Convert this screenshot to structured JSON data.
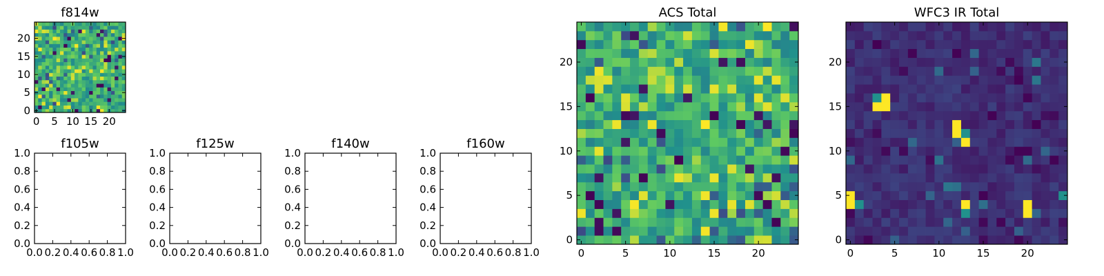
{
  "figure": {
    "colormap": "viridis",
    "colormap_stops": [
      "#440154",
      "#3b528b",
      "#21918c",
      "#5ec962",
      "#fde725"
    ]
  },
  "chart_data": [
    {
      "id": "f814w",
      "type": "heatmap",
      "title": "f814w",
      "grid_size": 25,
      "seed": 11,
      "mode": "acs",
      "xticks": [
        0,
        5,
        10,
        15,
        20
      ],
      "yticks": [
        0,
        5,
        10,
        15,
        20
      ],
      "xlim": [
        -0.5,
        24.5
      ],
      "ylim": [
        -0.5,
        24.5
      ]
    },
    {
      "id": "f105w",
      "type": "heatmap",
      "title": "f105w",
      "empty": true,
      "xticks": [
        "0.0",
        "0.2",
        "0.4",
        "0.6",
        "0.8",
        "1.0"
      ],
      "yticks": [
        "0.0",
        "0.2",
        "0.4",
        "0.6",
        "0.8",
        "1.0"
      ],
      "xlim": [
        0,
        1
      ],
      "ylim": [
        0,
        1
      ]
    },
    {
      "id": "f125w",
      "type": "heatmap",
      "title": "f125w",
      "empty": true,
      "xticks": [
        "0.0",
        "0.2",
        "0.4",
        "0.6",
        "0.8",
        "1.0"
      ],
      "yticks": [
        "0.0",
        "0.2",
        "0.4",
        "0.6",
        "0.8",
        "1.0"
      ],
      "xlim": [
        0,
        1
      ],
      "ylim": [
        0,
        1
      ]
    },
    {
      "id": "f140w",
      "type": "heatmap",
      "title": "f140w",
      "empty": true,
      "xticks": [
        "0.0",
        "0.2",
        "0.4",
        "0.6",
        "0.8",
        "1.0"
      ],
      "yticks": [
        "0.0",
        "0.2",
        "0.4",
        "0.6",
        "0.8",
        "1.0"
      ],
      "xlim": [
        0,
        1
      ],
      "ylim": [
        0,
        1
      ]
    },
    {
      "id": "f160w",
      "type": "heatmap",
      "title": "f160w",
      "empty": true,
      "xticks": [
        "0.0",
        "0.2",
        "0.4",
        "0.6",
        "0.8",
        "1.0"
      ],
      "yticks": [
        "0.0",
        "0.2",
        "0.4",
        "0.6",
        "0.8",
        "1.0"
      ],
      "xlim": [
        0,
        1
      ],
      "ylim": [
        0,
        1
      ]
    },
    {
      "id": "acs-total",
      "type": "heatmap",
      "title": "ACS Total",
      "grid_size": 25,
      "seed": 23,
      "mode": "acs",
      "xticks": [
        0,
        5,
        10,
        15,
        20
      ],
      "yticks": [
        0,
        5,
        10,
        15,
        20
      ],
      "xlim": [
        -0.5,
        24.5
      ],
      "ylim": [
        -0.5,
        24.5
      ]
    },
    {
      "id": "wfc3-ir-total",
      "type": "heatmap",
      "title": "WFC3 IR Total",
      "grid_size": 25,
      "seed": 37,
      "mode": "ir",
      "xticks": [
        0,
        5,
        10,
        15,
        20
      ],
      "yticks": [
        0,
        5,
        10,
        15,
        20
      ],
      "xlim": [
        -0.5,
        24.5
      ],
      "ylim": [
        -0.5,
        24.5
      ],
      "bright_cells": [
        [
          3,
          15
        ],
        [
          4,
          15
        ],
        [
          3,
          16
        ],
        [
          4,
          16
        ],
        [
          12,
          12
        ],
        [
          13,
          12
        ],
        [
          13,
          11
        ],
        [
          0,
          4
        ],
        [
          1,
          4
        ],
        [
          0,
          5
        ],
        [
          13,
          4
        ],
        [
          13,
          3
        ],
        [
          20,
          4
        ],
        [
          20,
          3
        ],
        [
          24,
          5
        ],
        [
          12,
          13
        ]
      ]
    }
  ]
}
